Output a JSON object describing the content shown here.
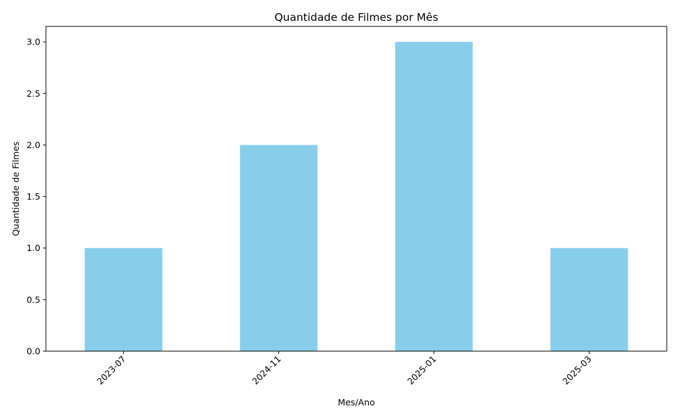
{
  "chart_data": {
    "type": "bar",
    "title": "Quantidade de Filmes por Mês",
    "xlabel": "Mes/Ano",
    "ylabel": "Quantidade de Filmes",
    "categories": [
      "2023-07",
      "2024-11",
      "2025-01",
      "2025-03"
    ],
    "values": [
      1,
      2,
      3,
      1
    ],
    "ylim": [
      0,
      3.15
    ],
    "yticks": [
      "0.0",
      "0.5",
      "1.0",
      "1.5",
      "2.0",
      "2.5",
      "3.0"
    ],
    "xtick_rotation": 45,
    "grid": false,
    "bar_color": "#87ceeb"
  }
}
